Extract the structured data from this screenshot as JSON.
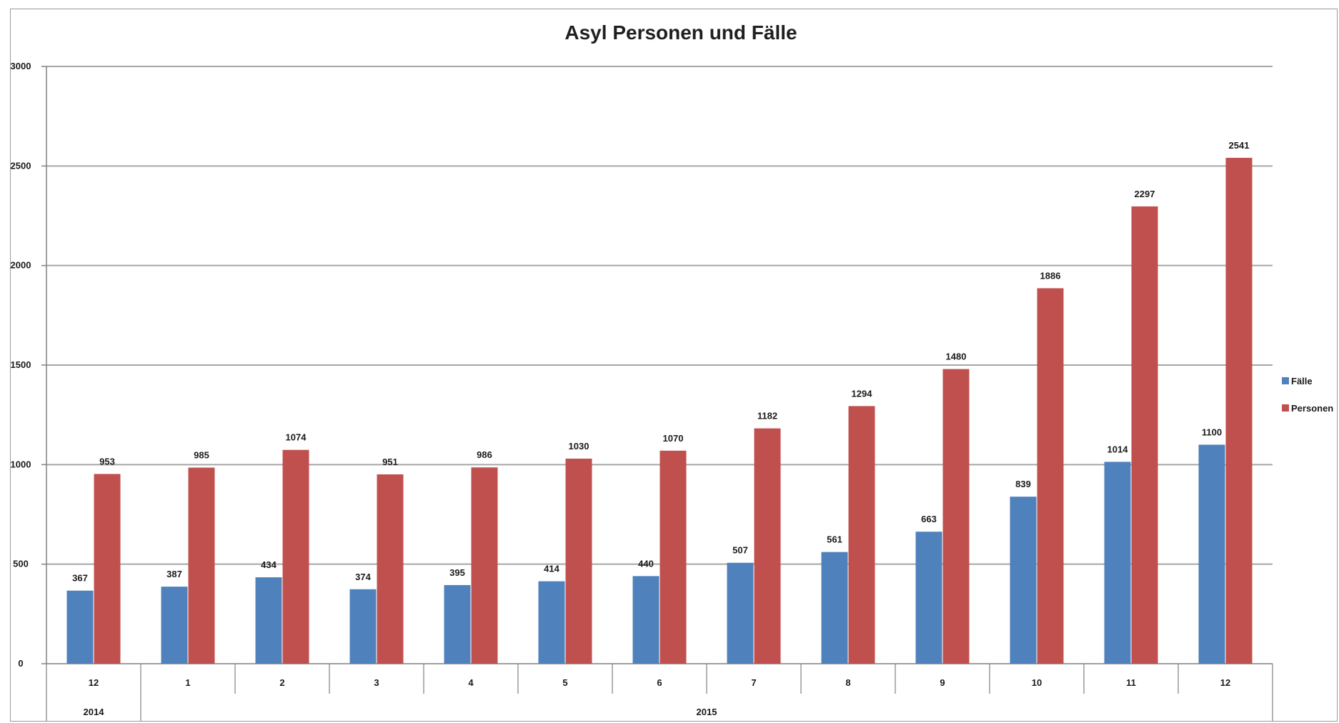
{
  "chart_data": {
    "type": "bar",
    "title": "Asyl Personen und Fälle",
    "categories": [
      "12",
      "1",
      "2",
      "3",
      "4",
      "5",
      "6",
      "7",
      "8",
      "9",
      "10",
      "11",
      "12"
    ],
    "groups": [
      {
        "label": "2014",
        "count": 1
      },
      {
        "label": "2015",
        "count": 12
      }
    ],
    "series": [
      {
        "name": "Fälle",
        "color": "#4f81bd",
        "values": [
          367,
          387,
          434,
          374,
          395,
          414,
          440,
          507,
          561,
          663,
          839,
          1014,
          1100
        ]
      },
      {
        "name": "Personen",
        "color": "#c0504d",
        "values": [
          953,
          985,
          1074,
          951,
          986,
          1030,
          1070,
          1182,
          1294,
          1480,
          1886,
          2297,
          2541
        ]
      }
    ],
    "ylim": [
      0,
      3000
    ],
    "yticks": [
      0,
      500,
      1000,
      1500,
      2000,
      2500,
      3000
    ],
    "xlabel": "",
    "ylabel": "",
    "grid": true,
    "legend_position": "right"
  }
}
